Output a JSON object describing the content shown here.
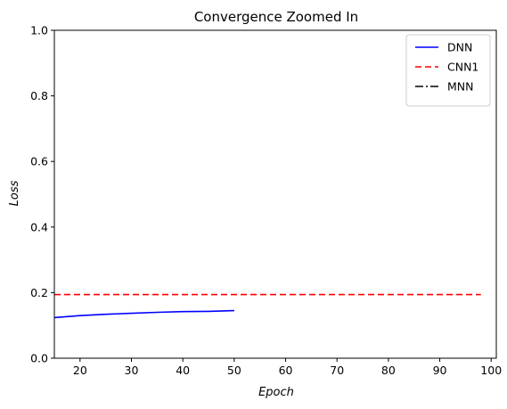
{
  "chart_data": {
    "type": "line",
    "title": "Convergence Zoomed In",
    "xlabel": "Epoch",
    "ylabel": "Loss",
    "xlim": [
      15,
      101
    ],
    "ylim": [
      0.0,
      1.0
    ],
    "x_ticks": [
      20,
      30,
      40,
      50,
      60,
      70,
      80,
      90,
      100
    ],
    "x_tick_labels": [
      "20",
      "30",
      "40",
      "50",
      "60",
      "70",
      "80",
      "90",
      "100"
    ],
    "y_ticks": [
      0.0,
      0.2,
      0.4,
      0.6,
      0.8,
      1.0
    ],
    "y_tick_labels": [
      "0.0",
      "0.2",
      "0.4",
      "0.6",
      "0.8",
      "1.0"
    ],
    "grid": false,
    "legend_position": "top-right",
    "series": [
      {
        "name": "DNN",
        "color": "#0000ff",
        "style": "solid",
        "x": [
          15,
          20,
          25,
          30,
          35,
          40,
          45,
          50
        ],
        "y": [
          0.124,
          0.13,
          0.134,
          0.137,
          0.14,
          0.142,
          0.143,
          0.145
        ]
      },
      {
        "name": "CNN1",
        "color": "#ff0000",
        "style": "dashed",
        "x": [
          15,
          98
        ],
        "y": [
          0.194,
          0.194
        ]
      },
      {
        "name": "MNN",
        "color": "#000000",
        "style": "dashdot",
        "x": [],
        "y": []
      }
    ]
  }
}
